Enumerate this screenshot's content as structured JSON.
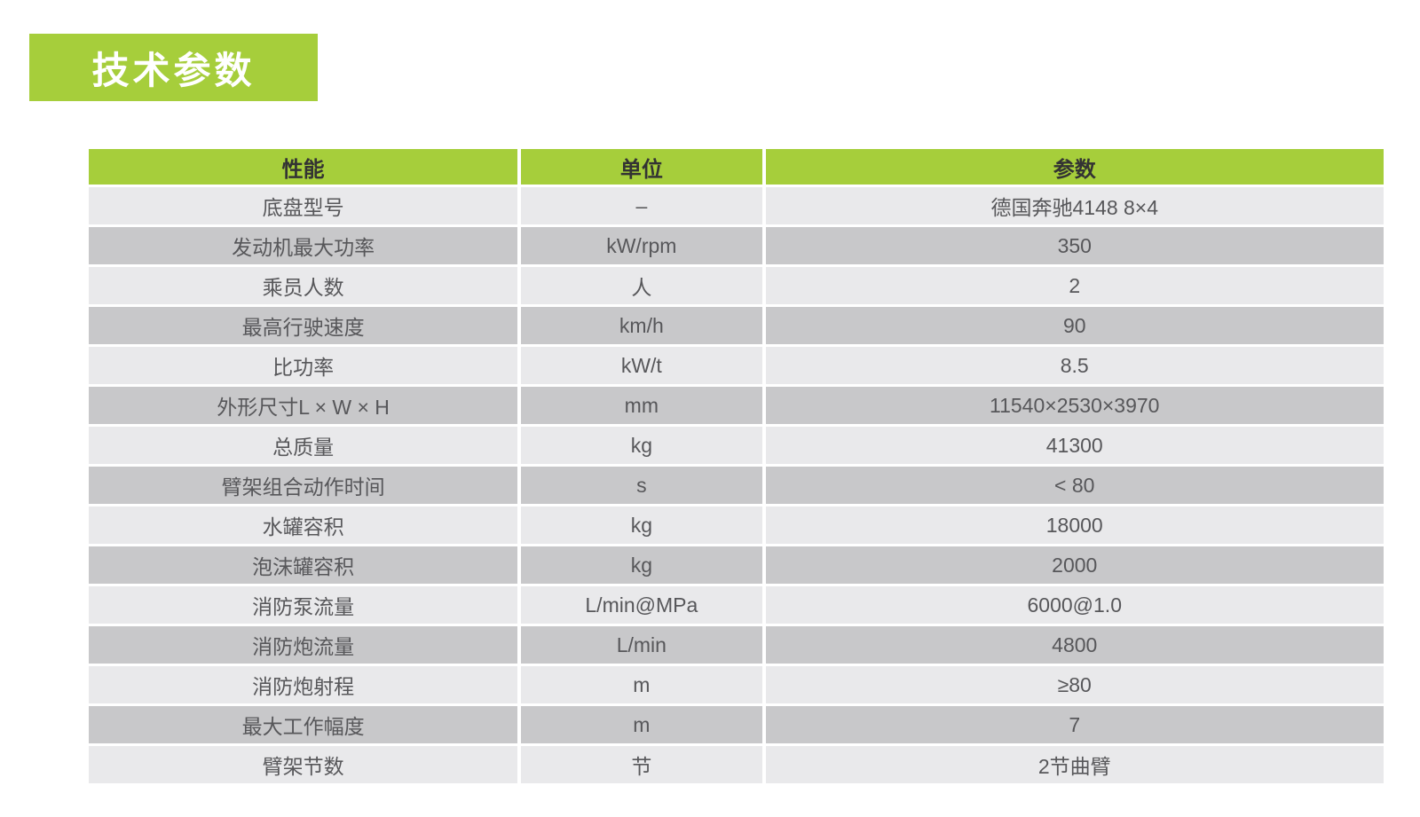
{
  "title": {
    "text": "技术参数"
  },
  "colors": {
    "accent_green": "#a6ce3b",
    "row_light": "#e9e9eb",
    "row_dark": "#c8c8ca",
    "header_text": "#333333",
    "body_text": "#57575a",
    "title_text": "#ffffff"
  },
  "table": {
    "headers": [
      "性能",
      "单位",
      "参数"
    ],
    "rows": [
      [
        "底盘型号",
        "–",
        "德国奔驰4148 8×4"
      ],
      [
        "发动机最大功率",
        "kW/rpm",
        "350"
      ],
      [
        "乘员人数",
        "人",
        "2"
      ],
      [
        "最高行驶速度",
        "km/h",
        "90"
      ],
      [
        "比功率",
        "kW/t",
        "8.5"
      ],
      [
        "外形尺寸L × W × H",
        "mm",
        "11540×2530×3970"
      ],
      [
        "总质量",
        "kg",
        "41300"
      ],
      [
        "臂架组合动作时间",
        "s",
        "< 80"
      ],
      [
        "水罐容积",
        "kg",
        "18000"
      ],
      [
        "泡沫罐容积",
        "kg",
        "2000"
      ],
      [
        "消防泵流量",
        "L/min@MPa",
        "6000@1.0"
      ],
      [
        "消防炮流量",
        "L/min",
        "4800"
      ],
      [
        "消防炮射程",
        "m",
        "≥80"
      ],
      [
        "最大工作幅度",
        "m",
        "7"
      ],
      [
        "臂架节数",
        "节",
        "2节曲臂"
      ]
    ]
  }
}
